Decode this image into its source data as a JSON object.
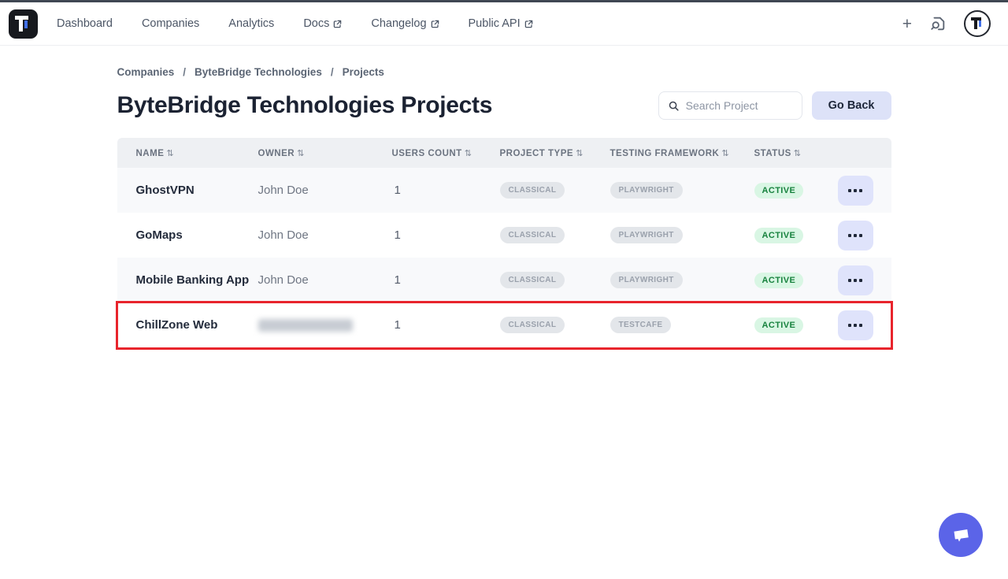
{
  "topbar": {
    "nav": [
      {
        "label": "Dashboard",
        "external": false
      },
      {
        "label": "Companies",
        "external": false
      },
      {
        "label": "Analytics",
        "external": false
      },
      {
        "label": "Docs",
        "external": true
      },
      {
        "label": "Changelog",
        "external": true
      },
      {
        "label": "Public API",
        "external": true
      }
    ],
    "plus_icon": "+"
  },
  "breadcrumb": {
    "items": [
      "Companies",
      "ByteBridge Technologies",
      "Projects"
    ],
    "separator": "/"
  },
  "page": {
    "title": "ByteBridge Technologies Projects"
  },
  "toolbar": {
    "search_placeholder": "Search Project",
    "go_back_label": "Go Back"
  },
  "table": {
    "columns": [
      "NAME",
      "OWNER",
      "USERS COUNT",
      "PROJECT TYPE",
      "TESTING FRAMEWORK",
      "STATUS"
    ],
    "sort_icon": "⇅",
    "rows": [
      {
        "name": "GhostVPN",
        "owner": "John Doe",
        "owner_redacted": false,
        "users_count": "1",
        "project_type": "CLASSICAL",
        "testing_framework": "PLAYWRIGHT",
        "status": "ACTIVE",
        "highlighted": false
      },
      {
        "name": "GoMaps",
        "owner": "John Doe",
        "owner_redacted": false,
        "users_count": "1",
        "project_type": "CLASSICAL",
        "testing_framework": "PLAYWRIGHT",
        "status": "ACTIVE",
        "highlighted": false
      },
      {
        "name": "Mobile Banking App",
        "owner": "John Doe",
        "owner_redacted": false,
        "users_count": "1",
        "project_type": "CLASSICAL",
        "testing_framework": "PLAYWRIGHT",
        "status": "ACTIVE",
        "highlighted": false
      },
      {
        "name": "ChillZone Web",
        "owner": "",
        "owner_redacted": true,
        "users_count": "1",
        "project_type": "CLASSICAL",
        "testing_framework": "TESTCAFE",
        "status": "ACTIVE",
        "highlighted": true
      }
    ]
  },
  "colors": {
    "accent_blue": "#4170e8",
    "fab_purple": "#5b64e8",
    "highlight_red": "#e8242c",
    "active_bg": "#d9f6e4",
    "active_text": "#17823e"
  }
}
